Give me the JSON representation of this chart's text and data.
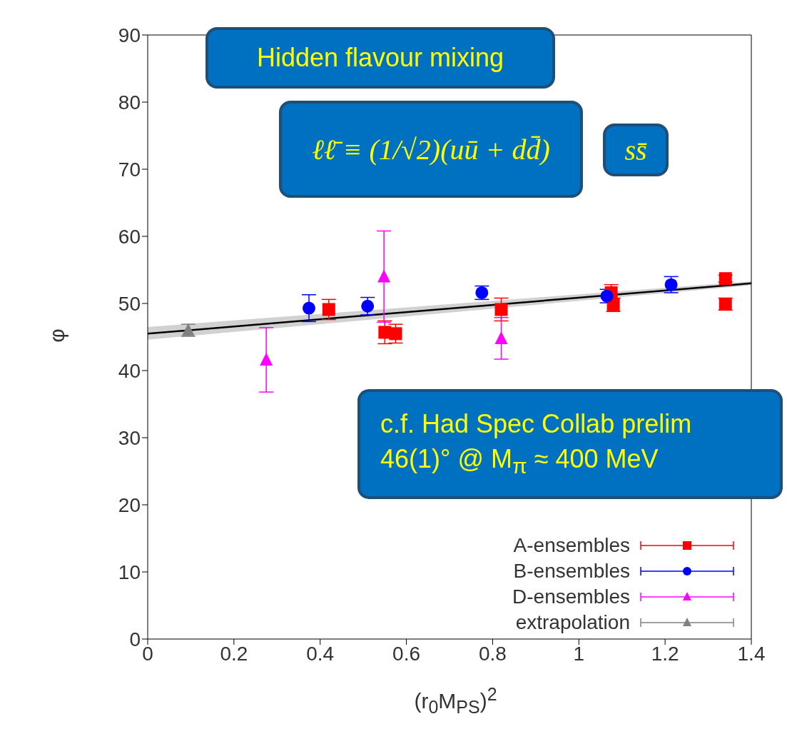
{
  "chart_data": {
    "type": "scatter",
    "xlabel": "(r$_{0}$M$_{PS}$)$^{2}$",
    "ylabel": "φ",
    "annotations": [
      "Hidden flavour mixing",
      "ℓℓ̄ ≡ (1/√2)(uū + dd̄)",
      "ss̄",
      "c.f. Had Spec Collab prelim\n46(1)° @ M$_{π}$ ≈ 400 MeV"
    ],
    "xlim": [
      0,
      1.4
    ],
    "xticks": [
      0,
      0.2,
      0.4,
      0.6,
      0.8,
      1,
      1.2,
      1.4
    ],
    "ylim": [
      0,
      90
    ],
    "yticks": [
      0,
      10,
      20,
      30,
      40,
      50,
      60,
      70,
      80,
      90
    ],
    "grid": false,
    "legend": "bottom right",
    "series": [
      {
        "name": "A-ensembles",
        "color": "#ff0000",
        "marker": "square",
        "x": [
          0.42,
          0.55,
          0.575,
          0.82,
          1.075,
          1.08,
          1.34,
          1.34
        ],
        "values": [
          49.1,
          45.7,
          45.5,
          49.1,
          51.6,
          49.8,
          53.7,
          49.9
        ],
        "errors": [
          1.5,
          1.7,
          1.4,
          1.7,
          1.2,
          1.0,
          0.5,
          0.9
        ]
      },
      {
        "name": "B-ensembles",
        "color": "#0000ff",
        "marker": "circle",
        "x": [
          0.374,
          0.51,
          0.775,
          1.065,
          1.214
        ],
        "values": [
          49.3,
          49.6,
          51.6,
          51.1,
          52.8
        ],
        "errors": [
          2.0,
          1.3,
          1.0,
          1.0,
          1.2
        ]
      },
      {
        "name": "D-ensembles",
        "color": "#ff00ff",
        "marker": "triangle",
        "x": [
          0.275,
          0.548,
          0.82
        ],
        "values": [
          41.6,
          54.0,
          44.8
        ],
        "errors": [
          4.8,
          6.8,
          3.1
        ]
      },
      {
        "name": "extrapolation",
        "color": "#808080",
        "marker": "triangle",
        "x": [
          0.094
        ],
        "values": [
          46.0
        ],
        "errors": [
          0.9
        ]
      },
      {
        "type": "line",
        "color": "#000000",
        "x": [
          0,
          1.4
        ],
        "values": [
          45.5,
          53.0
        ],
        "lower": [
          44.6,
          52.7
        ],
        "upper": [
          46.5,
          53.3
        ]
      }
    ]
  }
}
